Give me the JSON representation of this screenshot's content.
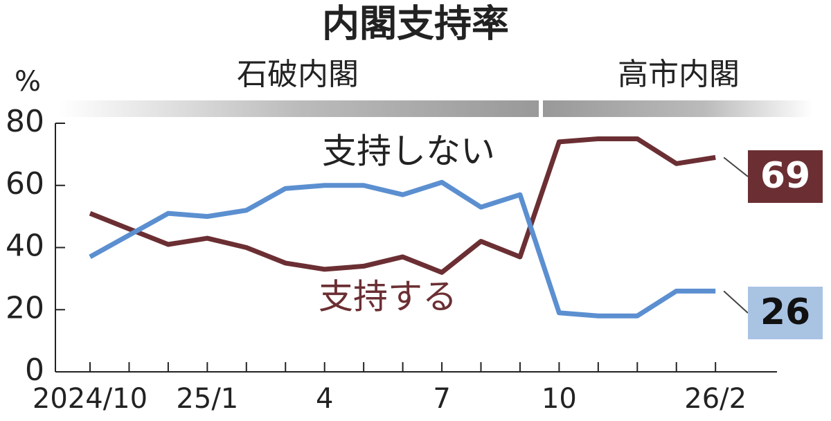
{
  "chart_data": {
    "type": "line",
    "title": "内閣支持率",
    "y_unit": "%",
    "annotations": [
      "石破内閣",
      "高市内閣"
    ],
    "categories": [
      "2024/10",
      null,
      null,
      "25/1",
      null,
      null,
      "4",
      null,
      null,
      "7",
      null,
      null,
      "10",
      null,
      null,
      null,
      "26/2"
    ],
    "series": [
      {
        "name": "支持する",
        "color": "#6b2f33",
        "values": [
          51,
          46,
          41,
          43,
          40,
          35,
          33,
          34,
          37,
          32,
          42,
          37,
          74,
          75,
          75,
          67,
          69
        ]
      },
      {
        "name": "支持しない",
        "color": "#5b8fd0",
        "values": [
          37,
          44,
          51,
          50,
          52,
          59,
          60,
          60,
          57,
          61,
          53,
          57,
          19,
          18,
          18,
          26,
          26
        ]
      }
    ],
    "ylim": [
      0,
      80
    ],
    "yticks": [
      0,
      20,
      40,
      60,
      80
    ]
  }
}
